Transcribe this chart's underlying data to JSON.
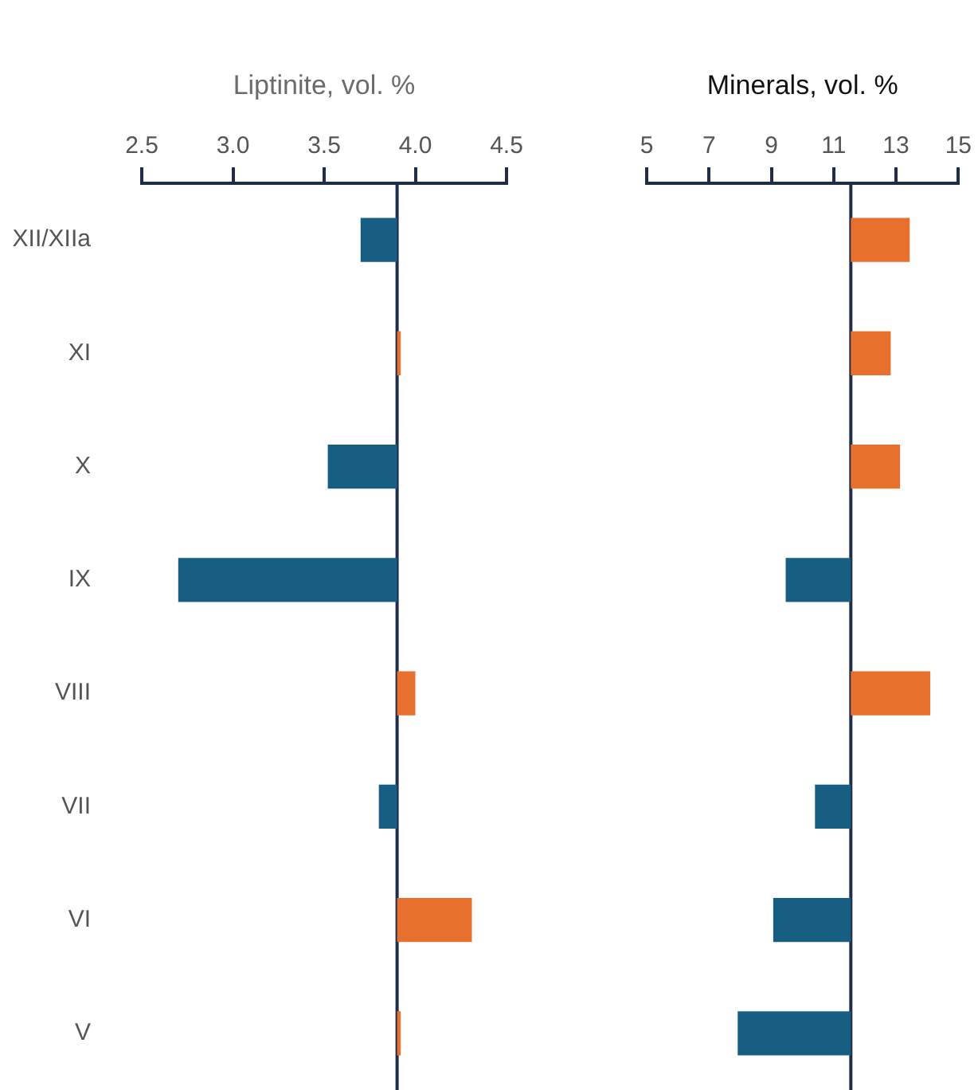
{
  "chart_data": [
    {
      "type": "bar",
      "orientation": "horizontal",
      "xlabel": "Liptinite, vol. %",
      "categories": [
        "XII/XIIa",
        "XI",
        "X",
        "IX",
        "VIII",
        "VII",
        "VI",
        "V"
      ],
      "base": [
        3.9,
        3.9,
        3.9,
        3.9,
        3.9,
        3.9,
        3.9,
        3.9
      ],
      "values": [
        -0.2,
        0.02,
        -0.38,
        -1.2,
        0.1,
        -0.1,
        0.41,
        0.02
      ],
      "colors": [
        "#175e82",
        "#e8702f",
        "#175e82",
        "#175e82",
        "#e8702f",
        "#175e82",
        "#e8702f",
        "#e8702f"
      ],
      "xlim": [
        2.5,
        4.5
      ],
      "xticks": [
        {
          "value": 2.5,
          "label": "2.5"
        },
        {
          "value": 3,
          "label": "3.0"
        },
        {
          "value": 3.5,
          "label": "3.5"
        },
        {
          "value": 4,
          "label": "4.0"
        },
        {
          "value": 4.5,
          "label": "4.5"
        }
      ],
      "ref_lines": [
        {
          "axis": "x",
          "value": 3.9,
          "color": "#1f2d48"
        }
      ],
      "grid": false,
      "legend": false
    },
    {
      "type": "bar",
      "orientation": "horizontal",
      "xlabel": "Minerals, vol. %",
      "categories": [
        null,
        null,
        null,
        null,
        null,
        null,
        null,
        null
      ],
      "base": [
        11.55,
        11.55,
        11.55,
        11.55,
        11.55,
        11.55,
        11.55,
        11.55
      ],
      "values": [
        1.89,
        1.28,
        1.58,
        -2.09,
        2.55,
        -1.15,
        -2.49,
        -3.63
      ],
      "colors": [
        "#e8702f",
        "#e8702f",
        "#e8702f",
        "#175e82",
        "#e8702f",
        "#175e82",
        "#175e82",
        "#175e82"
      ],
      "xlim": [
        5,
        15
      ],
      "xticks": [
        5,
        7,
        9,
        11,
        13,
        15
      ],
      "ref_lines": [
        {
          "axis": "x",
          "value": 11.55,
          "color": "#1f2d48"
        }
      ],
      "grid": false,
      "legend": false,
      "tick_labels": "x"
    }
  ]
}
